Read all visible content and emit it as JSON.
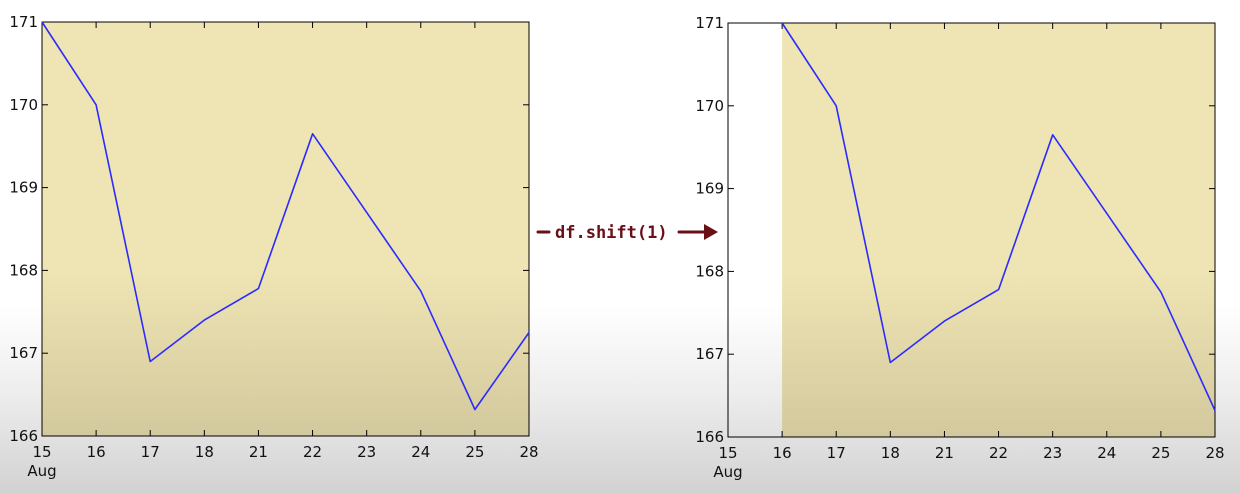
{
  "annotation": {
    "text": "df.shift(1)",
    "color": "#6b0f16"
  },
  "colors": {
    "plot_background": "#efe4b3",
    "series_line": "#2b2bff"
  },
  "chart_data": [
    {
      "type": "line",
      "x": [
        "15",
        "16",
        "17",
        "18",
        "21",
        "22",
        "23",
        "24",
        "25",
        "28"
      ],
      "x_tick_labels": [
        "15",
        "16",
        "17",
        "18",
        "21",
        "22",
        "23",
        "24",
        "25",
        "28"
      ],
      "x_sublabel": "Aug",
      "values": [
        171.0,
        170.0,
        166.9,
        167.4,
        167.78,
        169.65,
        168.7,
        167.75,
        166.32,
        167.25
      ],
      "ylim": [
        166,
        171
      ],
      "y_ticks": [
        166,
        167,
        168,
        169,
        170,
        171
      ],
      "grid": false,
      "legend": "none"
    },
    {
      "type": "line",
      "x": [
        "15",
        "16",
        "17",
        "18",
        "21",
        "22",
        "23",
        "24",
        "25",
        "28"
      ],
      "x_tick_labels": [
        "15",
        "16",
        "17",
        "18",
        "21",
        "22",
        "23",
        "24",
        "25",
        "28"
      ],
      "x_sublabel": "Aug",
      "values": [
        null,
        171.0,
        170.0,
        166.9,
        167.4,
        167.78,
        169.65,
        168.7,
        167.75,
        166.32
      ],
      "ylim": [
        166,
        171
      ],
      "y_ticks": [
        166,
        167,
        168,
        169,
        170,
        171
      ],
      "grid": false,
      "legend": "none"
    }
  ]
}
